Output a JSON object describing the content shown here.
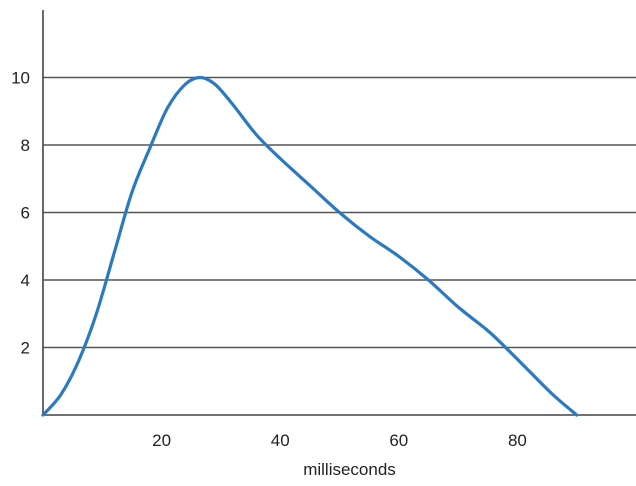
{
  "chart_data": {
    "type": "line",
    "title": "",
    "xlabel": "milliseconds",
    "ylabel": "",
    "xlim": [
      0,
      100
    ],
    "ylim": [
      0,
      12
    ],
    "grid": "horizontal",
    "legend": "none",
    "x_ticks": [
      20,
      40,
      60,
      80
    ],
    "x_tick_labels": [
      "20",
      "40",
      "60",
      "80"
    ],
    "y_ticks": [
      2,
      4,
      6,
      8,
      10
    ],
    "y_tick_labels": [
      "2",
      "4",
      "6",
      "8",
      "10"
    ],
    "series": [
      {
        "color": "#2b79c0",
        "x": [
          0,
          3,
          6,
          9,
          12,
          15,
          18,
          21,
          24,
          26.5,
          29,
          32,
          36,
          40,
          45,
          50,
          55,
          60,
          65,
          70,
          75,
          78,
          82,
          86,
          90
        ],
        "y": [
          0,
          0.6,
          1.6,
          3.0,
          4.8,
          6.6,
          7.9,
          9.1,
          9.8,
          10.0,
          9.8,
          9.2,
          8.3,
          7.6,
          6.8,
          6.0,
          5.3,
          4.7,
          4.0,
          3.2,
          2.5,
          2.0,
          1.3,
          0.6,
          0.0
        ]
      }
    ]
  },
  "colors": {
    "gridline": "#555555",
    "axis": "#444444",
    "line": "#2b79c0"
  }
}
